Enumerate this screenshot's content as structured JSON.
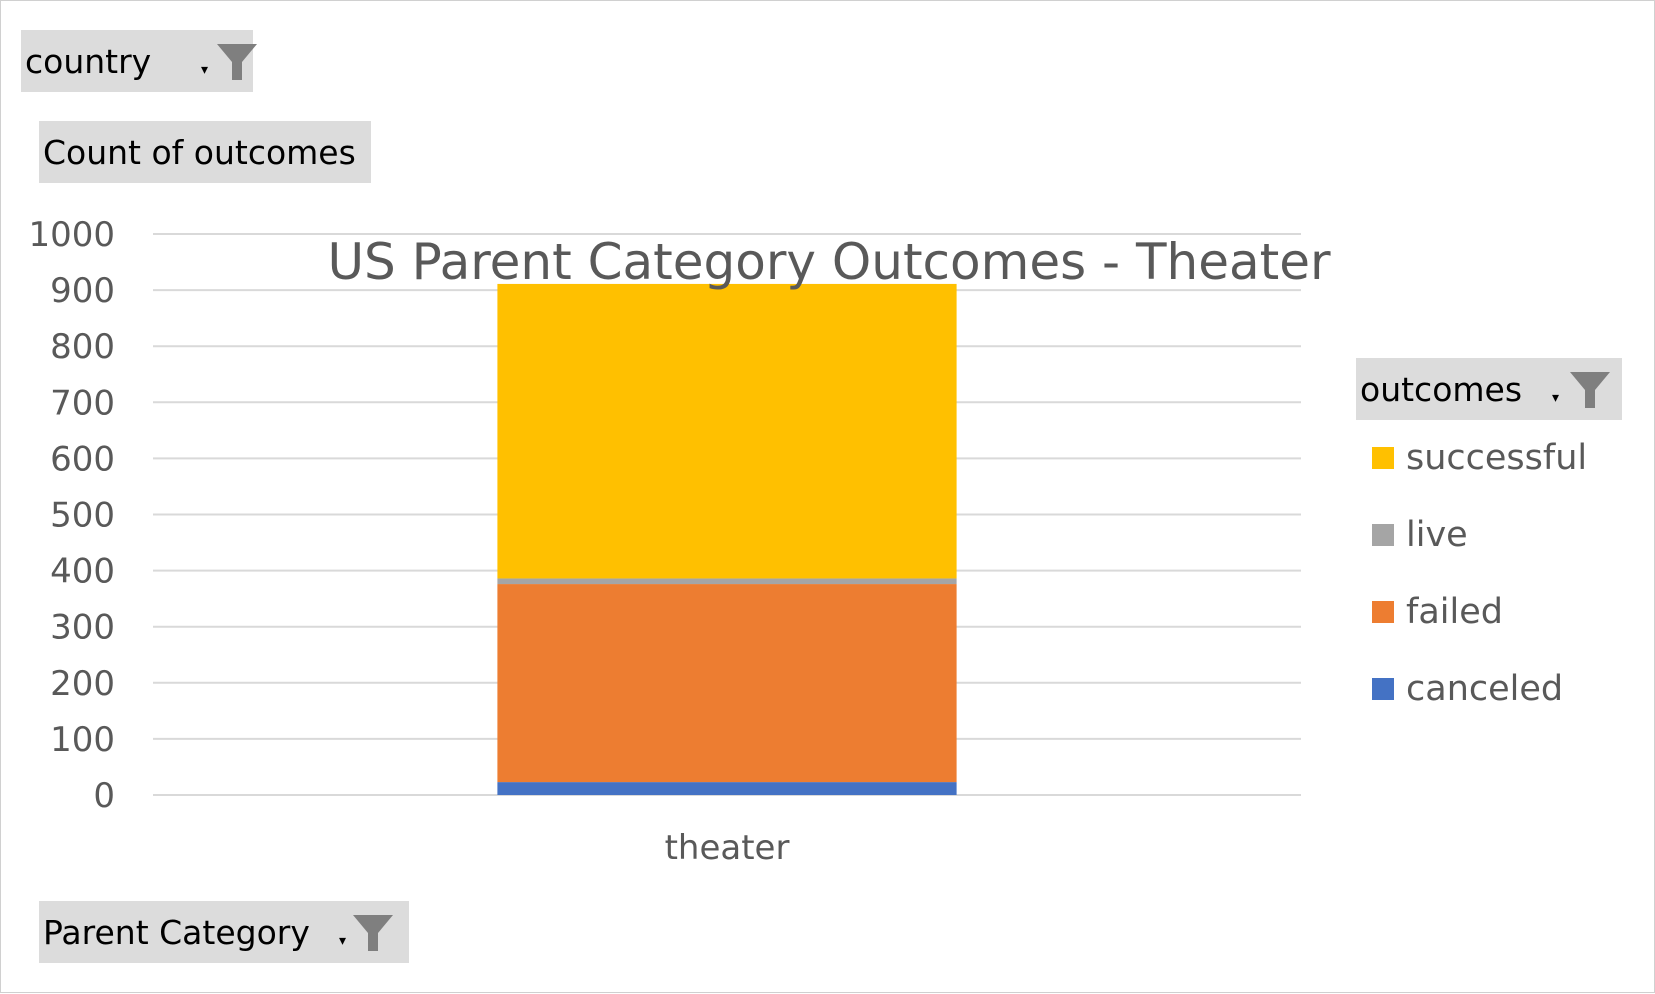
{
  "filters": {
    "country": "country",
    "values_field": "Count of outcomes",
    "legend_field": "outcomes",
    "axis_field": "Parent Category"
  },
  "icons": {
    "filter": "funnel-filter-icon",
    "dropdown": "dropdown-arrow-icon"
  },
  "chart_data": {
    "type": "bar",
    "stacked": true,
    "title": "US Parent Category Outcomes - Theater",
    "xlabel": "",
    "ylabel": "",
    "categories": [
      "theater"
    ],
    "ylim": [
      0,
      1000
    ],
    "yticks": [
      0,
      100,
      200,
      300,
      400,
      500,
      600,
      700,
      800,
      900,
      1000
    ],
    "grid": true,
    "legend_position": "right",
    "series": [
      {
        "name": "canceled",
        "values": [
          23
        ],
        "color": "#4472C4"
      },
      {
        "name": "failed",
        "values": [
          353
        ],
        "color": "#ED7D31"
      },
      {
        "name": "live",
        "values": [
          10
        ],
        "color": "#A5A5A5"
      },
      {
        "name": "successful",
        "values": [
          525
        ],
        "color": "#FFC000"
      }
    ],
    "legend_order": [
      "successful",
      "live",
      "failed",
      "canceled"
    ]
  }
}
